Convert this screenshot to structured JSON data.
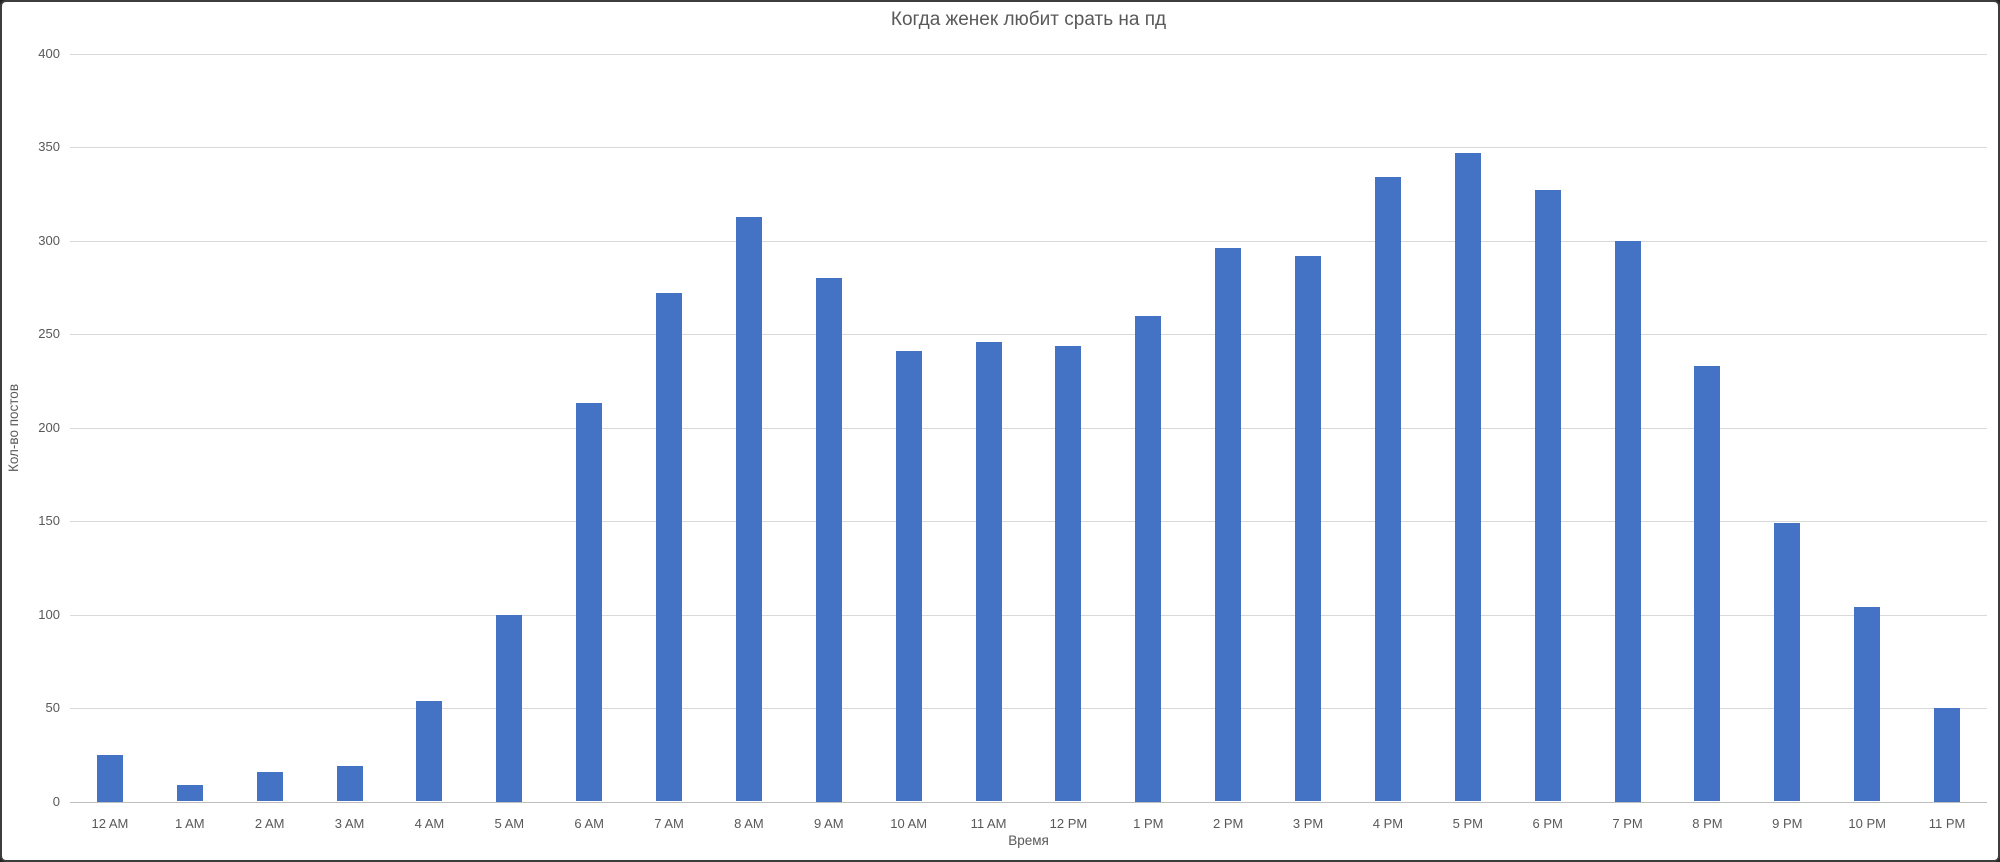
{
  "window": {
    "background": "#ffffff",
    "frame_border_color": "#3d3d3d"
  },
  "chart_data": {
    "type": "bar",
    "title": "Когда женек любит срать на пд",
    "xlabel": "Время",
    "ylabel": "Кол-во постов",
    "categories": [
      "12 AM",
      "1 AM",
      "2 AM",
      "3 AM",
      "4 AM",
      "5 AM",
      "6 AM",
      "7 AM",
      "8 AM",
      "9 AM",
      "10 AM",
      "11 AM",
      "12 PM",
      "1 PM",
      "2 PM",
      "3 PM",
      "4 PM",
      "5 PM",
      "6 PM",
      "7 PM",
      "8 PM",
      "9 PM",
      "10 PM",
      "11 PM"
    ],
    "values": [
      25,
      9,
      16,
      19,
      54,
      100,
      213,
      272,
      313,
      280,
      241,
      246,
      244,
      260,
      296,
      292,
      334,
      347,
      327,
      300,
      233,
      149,
      104,
      50
    ],
    "ylim": [
      0,
      400
    ],
    "yticks": [
      0,
      50,
      100,
      150,
      200,
      250,
      300,
      350,
      400
    ],
    "grid": "horizontal",
    "legend": "none",
    "colors": {
      "bar": "#4472C4",
      "gridline": "#d9d9d9",
      "axis_line": "#bfbfbf",
      "text": "#595959"
    }
  }
}
